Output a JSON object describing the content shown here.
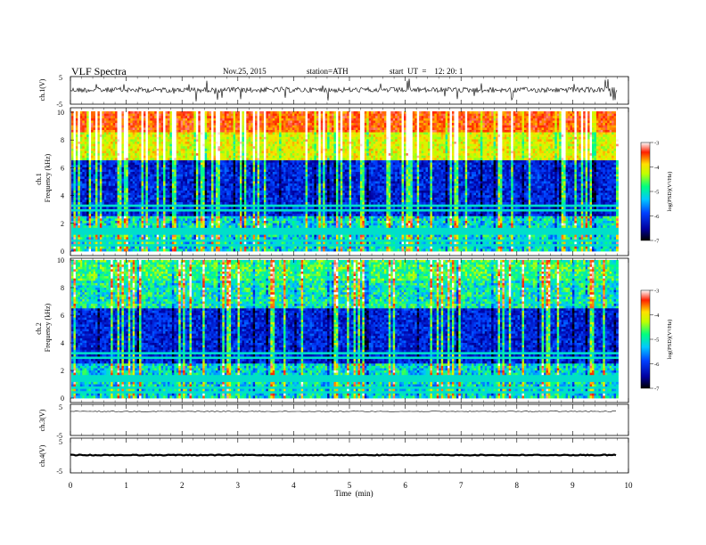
{
  "header": {
    "title": "VLF  Spectra",
    "date": "Nov.25, 2015",
    "station": "station=ATH",
    "start": "start  UT  =    12: 20: 1"
  },
  "chart_data": [
    {
      "type": "line",
      "panel": "ch1-waveform",
      "ylabel": "ch.1(V)",
      "yticks": [
        "5",
        "-5"
      ],
      "ylim": [
        -5,
        5
      ],
      "xlim": [
        0,
        10
      ]
    },
    {
      "type": "heatmap",
      "panel": "ch1-spectrogram",
      "ylabel": "ch.1\nFrequency  (kHz)",
      "ylim": [
        0,
        10
      ],
      "yticks": [
        "0",
        "2",
        "4",
        "6",
        "8",
        "10"
      ],
      "xlim": [
        0,
        10
      ],
      "colorbar": {
        "label": "log(PSD)(V²/Hz)",
        "ticks": [
          "-3",
          "-4",
          "-5",
          "-6",
          "-7"
        ],
        "range": [
          -7,
          -3
        ]
      }
    },
    {
      "type": "heatmap",
      "panel": "ch2-spectrogram",
      "ylabel": "ch.2\nFrequency  (kHz)",
      "ylim": [
        0,
        10
      ],
      "yticks": [
        "0",
        "2",
        "4",
        "6",
        "8",
        "10"
      ],
      "xlim": [
        0,
        10
      ],
      "colorbar": {
        "label": "log(PSD)(V²/Hz)",
        "ticks": [
          "-3",
          "-4",
          "-5",
          "-6",
          "-7"
        ],
        "range": [
          -7,
          -3
        ]
      }
    },
    {
      "type": "line",
      "panel": "ch3-waveform",
      "ylabel": "ch.3(V)",
      "yticks": [
        "5",
        "-5"
      ],
      "ylim": [
        -5,
        5
      ],
      "xlim": [
        0,
        10
      ]
    },
    {
      "type": "line",
      "panel": "ch4-waveform",
      "ylabel": "ch.4(V)",
      "yticks": [
        "5",
        "-5"
      ],
      "ylim": [
        -5,
        5
      ],
      "xlim": [
        0,
        10
      ]
    }
  ],
  "xaxis": {
    "label": "Time  (min)",
    "ticks": [
      "0",
      "1",
      "2",
      "3",
      "4",
      "5",
      "6",
      "7",
      "8",
      "9",
      "10"
    ]
  }
}
